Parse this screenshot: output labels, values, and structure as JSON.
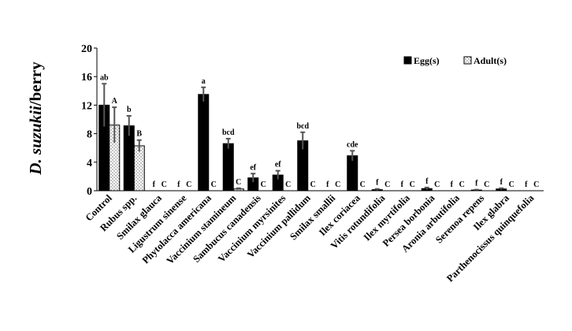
{
  "chart_data": {
    "type": "bar",
    "ylabel_italic": "D. suzukii",
    "ylabel_rest": "/berry",
    "ylim": [
      0,
      20
    ],
    "yticks": [
      0,
      4,
      8,
      12,
      16,
      20
    ],
    "grid": false,
    "legend_position": "top-right",
    "categories": [
      "Control",
      "Rubus spp.",
      "Smilax glauca",
      "Ligustrum sinense",
      "Phytolacca americana",
      "Vaccinium stamineum",
      "Sambucus canadensis",
      "Vaccinium myrsinites",
      "Vaccinium pallidum",
      "Smilax smallii",
      "Ilex coriacea",
      "Vitis rotundifolia",
      "Ilex myrtifolia",
      "Persea borbonia",
      "Aronia arbutifolia",
      "Serenoa repens",
      "Ilex glabra",
      "Parthenocissus quinquefolia"
    ],
    "series": [
      {
        "name": "Egg(s)",
        "color": "#000000",
        "values": [
          12.0,
          9.1,
          0,
          0,
          13.5,
          6.6,
          1.8,
          2.2,
          7.0,
          0,
          4.9,
          0.15,
          0,
          0.3,
          0,
          0.1,
          0.25,
          0
        ],
        "errors": [
          3.0,
          1.4,
          0,
          0,
          1.0,
          0.7,
          0.6,
          0.6,
          1.2,
          0,
          0.7,
          0.1,
          0,
          0.15,
          0,
          0.05,
          0.1,
          0
        ],
        "labels": [
          "ab",
          "b",
          "f",
          "f",
          "a",
          "bcd",
          "ef",
          "ef",
          "bcd",
          "f",
          "cde",
          "f",
          "f",
          "f",
          "f",
          "f",
          "f",
          "f"
        ]
      },
      {
        "name": "Adult(s)",
        "color": "#ffffff",
        "values": [
          9.2,
          6.3,
          0,
          0,
          0,
          0.25,
          0,
          0,
          0,
          0,
          0,
          0,
          0,
          0,
          0,
          0,
          0,
          0
        ],
        "errors": [
          2.5,
          0.8,
          0,
          0,
          0,
          0.1,
          0,
          0,
          0,
          0,
          0,
          0,
          0,
          0,
          0,
          0,
          0,
          0
        ],
        "labels": [
          "A",
          "B",
          "C",
          "C",
          "C",
          "C",
          "C",
          "C",
          "C",
          "C",
          "C",
          "C",
          "C",
          "C",
          "C",
          "C",
          "C",
          "C"
        ]
      }
    ]
  }
}
